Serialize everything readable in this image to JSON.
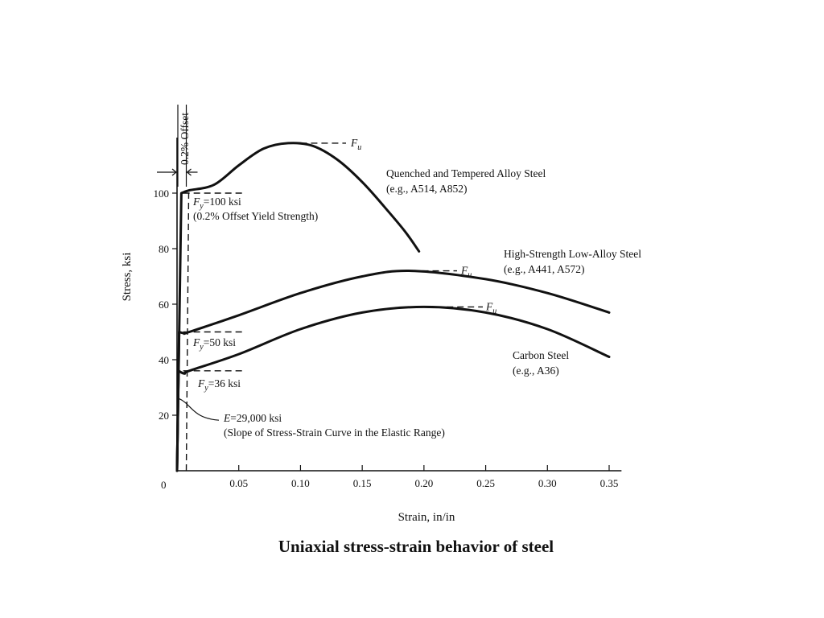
{
  "chart_data": {
    "type": "line",
    "title": "",
    "xlabel": "Strain, in/in",
    "ylabel": "Stress, ksi",
    "xlim": [
      0,
      0.36
    ],
    "ylim": [
      0,
      120
    ],
    "x_ticks": [
      0.05,
      0.1,
      0.15,
      0.2,
      0.25,
      0.3,
      0.35
    ],
    "x_tick_labels": [
      "0.05",
      "0.10",
      "0.15",
      "0.20",
      "0.25",
      "0.30",
      "0.35"
    ],
    "y_ticks": [
      20,
      40,
      60,
      80,
      100
    ],
    "y_tick_labels": [
      "20",
      "40",
      "60",
      "80",
      "100"
    ],
    "origin_label": "0",
    "grid": false,
    "series": [
      {
        "name": "Quenched and Tempered Alloy Steel",
        "example": "(e.g., A514, A852)",
        "x": [
          0,
          0.0035,
          0.01,
          0.03,
          0.05,
          0.07,
          0.09,
          0.11,
          0.13,
          0.15,
          0.17,
          0.185,
          0.196
        ],
        "y": [
          0,
          100,
          101,
          103,
          110,
          116,
          118,
          117,
          112,
          104,
          94,
          86,
          79
        ]
      },
      {
        "name": "High-Strength Low-Alloy Steel",
        "example": "(e.g., A441, A572)",
        "x": [
          0,
          0.0017,
          0.006,
          0.01,
          0.05,
          0.1,
          0.15,
          0.19,
          0.25,
          0.3,
          0.35
        ],
        "y": [
          0,
          50,
          49.5,
          50,
          56,
          64,
          70,
          72,
          69,
          64,
          57
        ]
      },
      {
        "name": "Carbon Steel",
        "example": "(e.g., A36)",
        "x": [
          0,
          0.0012,
          0.006,
          0.01,
          0.05,
          0.1,
          0.15,
          0.2,
          0.25,
          0.3,
          0.35
        ],
        "y": [
          0,
          36,
          35,
          36,
          42,
          51,
          57,
          59,
          57,
          51,
          41
        ]
      }
    ],
    "annotations": {
      "offset_label": "0.2% Offset",
      "fu_label": "F",
      "fu_sub": "u",
      "fy_label": "F",
      "fy_sub": "y",
      "fy100_text": "=100 ksi",
      "fy100_note": "(0.2% Offset Yield Strength)",
      "fy50_text": "=50 ksi",
      "fy36_text": "=36 ksi",
      "e_label": "E",
      "e_text": "=29,000 ksi",
      "e_note": "(Slope of Stress-Strain Curve in the Elastic Range)",
      "fu_points": [
        {
          "x": 0.1,
          "y": 118
        },
        {
          "x": 0.19,
          "y": 72
        },
        {
          "x": 0.21,
          "y": 59
        }
      ],
      "fy_values": [
        100,
        50,
        36
      ]
    }
  },
  "caption": "Uniaxial stress-strain behavior of steel"
}
